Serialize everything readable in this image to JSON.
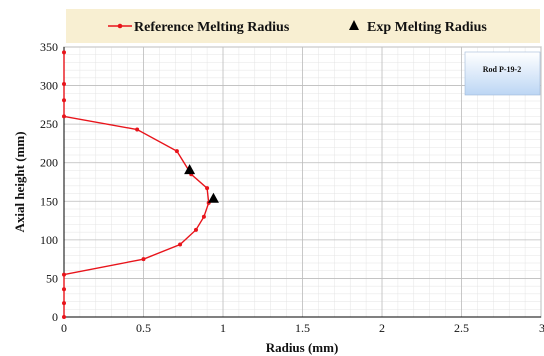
{
  "chart_data": {
    "type": "line",
    "xlabel": "Radius (mm)",
    "ylabel": "Axial height (mm)",
    "xlim": [
      0,
      3
    ],
    "ylim": [
      0,
      350
    ],
    "xticks": [
      "0",
      "0.5",
      "1",
      "1.5",
      "2",
      "2.5",
      "3"
    ],
    "yticks": [
      "0",
      "50",
      "100",
      "150",
      "200",
      "250",
      "300",
      "350"
    ],
    "xtick_values": [
      0,
      0.5,
      1,
      1.5,
      2,
      2.5,
      3
    ],
    "ytick_values": [
      0,
      50,
      100,
      150,
      200,
      250,
      300,
      350
    ],
    "grid": true,
    "legend_position": "top",
    "annotation": "Rod P-19-2",
    "series": [
      {
        "name": "Reference Melting Radius",
        "kind": "line-marker",
        "color": "#e8141b",
        "points": [
          {
            "x": 0,
            "y": 0
          },
          {
            "x": 0,
            "y": 18
          },
          {
            "x": 0,
            "y": 36
          },
          {
            "x": 0,
            "y": 55
          },
          {
            "x": 0.5,
            "y": 75
          },
          {
            "x": 0.73,
            "y": 94
          },
          {
            "x": 0.83,
            "y": 113
          },
          {
            "x": 0.88,
            "y": 130
          },
          {
            "x": 0.91,
            "y": 148
          },
          {
            "x": 0.9,
            "y": 167
          },
          {
            "x": 0.8,
            "y": 185
          },
          {
            "x": 0.71,
            "y": 215
          },
          {
            "x": 0.46,
            "y": 243
          },
          {
            "x": 0,
            "y": 260
          },
          {
            "x": 0,
            "y": 281
          },
          {
            "x": 0,
            "y": 302
          },
          {
            "x": 0,
            "y": 343
          }
        ]
      },
      {
        "name": "Exp Melting Radius",
        "kind": "marker-triangle",
        "color": "#000000",
        "points": [
          {
            "x": 0.79,
            "y": 191
          },
          {
            "x": 0.94,
            "y": 154
          }
        ]
      }
    ]
  }
}
